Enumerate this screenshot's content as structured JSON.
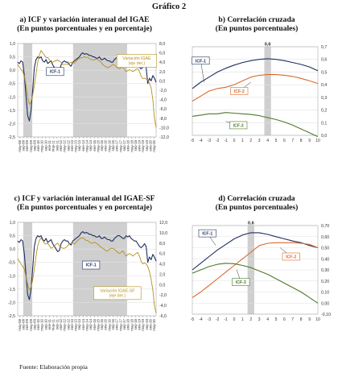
{
  "figure": {
    "title": "Gráfico 2",
    "source": "Fuente:      Elaboración propia"
  },
  "colors": {
    "icf": "#1f2f5e",
    "igae": "#b8901e",
    "ccf1": "#1f2f5e",
    "ccf2": "#d9692c",
    "ccf3": "#4a7a2b",
    "shade": "#cfcfcf",
    "grid": "#e2e2e2"
  },
  "chart_data": [
    {
      "id": "a",
      "type": "line",
      "title": "a) ICF y variación interanual del IGAE",
      "subtitle": "(En puntos porcentuales y en porcentaje)",
      "xticks": [
        "may-08",
        "sep-08",
        "ene-09",
        "may-09",
        "sep-09",
        "ene-10",
        "may-10",
        "sep-10",
        "ene-11",
        "may-11",
        "sep-11",
        "ene-12",
        "may-12",
        "sep-12",
        "ene-13",
        "may-13",
        "sep-13",
        "ene-14",
        "may-14",
        "sep-14",
        "ene-15",
        "may-15",
        "sep-15",
        "ene-16",
        "may-16",
        "sep-16",
        "ene-17",
        "may-17",
        "sep-17",
        "ene-18",
        "may-18",
        "sep-18",
        "ene-19",
        "may-19",
        "sep-19",
        "ene-20",
        "may-20"
      ],
      "ylim": [
        -2.5,
        1.0
      ],
      "y2lim": [
        -12.0,
        8.0
      ],
      "yticks": [
        "1,0",
        "0,5",
        "0,0",
        "-0,5",
        "-1,0",
        "-1,5",
        "-2,0",
        "-2,5"
      ],
      "y2ticks": [
        "8,0",
        "6,0",
        "4,0",
        "2,0",
        "0,0",
        "-2,0",
        "-4,0",
        "-6,0",
        "-8,0",
        "-10,0",
        "-12,0"
      ],
      "shaded_ranges": [
        [
          0.04,
          0.105
        ],
        [
          0.4,
          0.79
        ]
      ],
      "annotations": [
        {
          "text": "ICF-1",
          "x": 0.27,
          "y": -0.05,
          "boxed": true,
          "color": "#1f2f5e"
        },
        {
          "text": "Variación IGAE (eje der.)",
          "x": 0.86,
          "y": 0.35,
          "boxed": true,
          "color": "#b8901e"
        }
      ],
      "series": [
        {
          "key": "icf",
          "axis": "left",
          "values": [
            0.3,
            0.25,
            0.35,
            0.3,
            -0.2,
            -1.0,
            -1.7,
            -1.9,
            -1.5,
            -0.7,
            0.1,
            0.4,
            0.5,
            0.45,
            0.5,
            0.35,
            0.3,
            0.4,
            0.25,
            0.3,
            0.35,
            0.2,
            0.1,
            0.0,
            -0.1,
            -0.05,
            0.2,
            0.3,
            0.35,
            0.3,
            0.3,
            0.2,
            0.15,
            0.3,
            0.35,
            0.4,
            0.45,
            0.5,
            0.6,
            0.65,
            0.6,
            0.62,
            0.6,
            0.55,
            0.55,
            0.5,
            0.5,
            0.45,
            0.45,
            0.5,
            0.4,
            0.4,
            0.45,
            0.4,
            0.35,
            0.35,
            0.3,
            0.3,
            0.4,
            0.45,
            0.5,
            0.5,
            0.45,
            0.4,
            0.4,
            0.5,
            0.45,
            0.5,
            0.4,
            0.35,
            0.3,
            0.3,
            0.2,
            0.1,
            0.05,
            0.1,
            0.2,
            0.1,
            -0.5,
            -0.3,
            -0.4,
            -0.2,
            -0.3,
            -0.45
          ]
        },
        {
          "key": "igae",
          "axis": "right",
          "values": [
            3.5,
            3.0,
            2.5,
            2.0,
            1.0,
            -1.0,
            -3.5,
            -5.0,
            -4.5,
            -3.0,
            -1.0,
            1.5,
            4.0,
            5.5,
            6.5,
            6.0,
            5.5,
            5.0,
            5.0,
            4.5,
            4.0,
            4.0,
            4.2,
            4.3,
            4.5,
            4.2,
            4.0,
            3.5,
            3.5,
            3.6,
            3.5,
            3.8,
            4.0,
            4.0,
            3.8,
            4.2,
            4.6,
            4.8,
            5.0,
            5.0,
            5.2,
            5.0,
            5.1,
            4.8,
            4.6,
            4.5,
            4.5,
            4.7,
            4.5,
            4.3,
            4.0,
            3.5,
            3.2,
            3.0,
            2.8,
            3.0,
            3.2,
            3.5,
            3.4,
            3.0,
            2.8,
            2.6,
            2.8,
            3.0,
            2.5,
            2.0,
            2.2,
            2.4,
            2.2,
            2.0,
            2.2,
            2.5,
            2.6,
            2.0,
            1.0,
            0.5,
            0.6,
            0.4,
            0.2,
            -0.5,
            -1.5,
            -4.0,
            -8.0,
            -10.0
          ]
        }
      ]
    },
    {
      "id": "b",
      "type": "line",
      "title": "b) Correlación cruzada",
      "subtitle": "(En puntos porcentuales)",
      "x": [
        -5,
        -4,
        -3,
        -2,
        -1,
        0,
        1,
        2,
        3,
        4,
        5,
        6,
        7,
        8,
        9,
        10
      ],
      "xlim": [
        -5,
        10
      ],
      "y2lim": [
        0.0,
        0.7
      ],
      "y2ticks": [
        "0,7",
        "0,6",
        "0,5",
        "0,4",
        "0,3",
        "0,2",
        "0,1",
        "0,0"
      ],
      "shaded_ranges": [
        [
          3.6,
          4.4
        ]
      ],
      "peak_label": {
        "text": "0,6",
        "x": 4
      },
      "annotations": [
        {
          "text": "ICF-1",
          "x": -4.0,
          "y": 0.59,
          "boxed": true,
          "color": "#1f2f5e",
          "arrow_to": [
            -3.6,
            0.42
          ]
        },
        {
          "text": "ICF-2",
          "x": 0.6,
          "y": 0.35,
          "boxed": true,
          "color": "#d9692c",
          "arrow_to": [
            2.0,
            0.42
          ]
        },
        {
          "text": "ICF-3",
          "x": 0.5,
          "y": 0.08,
          "boxed": true,
          "color": "#4a7a2b",
          "arrow_to": [
            -1.0,
            0.11
          ]
        }
      ],
      "series": [
        {
          "key": "ccf1",
          "values": [
            0.37,
            0.42,
            0.46,
            0.5,
            0.53,
            0.555,
            0.575,
            0.59,
            0.6,
            0.605,
            0.6,
            0.59,
            0.575,
            0.56,
            0.54,
            0.51
          ]
        },
        {
          "key": "ccf2",
          "values": [
            0.27,
            0.31,
            0.35,
            0.37,
            0.38,
            0.4,
            0.43,
            0.46,
            0.475,
            0.48,
            0.48,
            0.475,
            0.465,
            0.45,
            0.43,
            0.41
          ]
        },
        {
          "key": "ccf3",
          "values": [
            0.15,
            0.16,
            0.17,
            0.17,
            0.18,
            0.175,
            0.17,
            0.165,
            0.155,
            0.14,
            0.125,
            0.105,
            0.08,
            0.05,
            0.02,
            -0.01
          ]
        }
      ]
    },
    {
      "id": "c",
      "type": "line",
      "title": "c) ICF y variación interanual del IGAE-SF",
      "subtitle": "(En puntos porcentuales y en porcentaje)",
      "xticks": [
        "may-08",
        "sep-08",
        "ene-09",
        "may-09",
        "sep-09",
        "ene-10",
        "may-10",
        "sep-10",
        "ene-11",
        "may-11",
        "sep-11",
        "ene-12",
        "may-12",
        "sep-12",
        "ene-13",
        "may-13",
        "sep-13",
        "ene-14",
        "may-14",
        "sep-14",
        "ene-15",
        "may-15",
        "sep-15",
        "ene-16",
        "may-16",
        "sep-16",
        "ene-17",
        "may-17",
        "sep-17",
        "ene-18",
        "may-18",
        "sep-18",
        "ene-19",
        "may-19",
        "sep-19",
        "ene-20",
        "may-20"
      ],
      "ylim": [
        -2.5,
        1.0
      ],
      "y2lim": [
        -6.0,
        12.0
      ],
      "yticks": [
        "1,0",
        "0,5",
        "0,0",
        "-0,5",
        "-1,0",
        "-1,5",
        "-2,0",
        "-2,5"
      ],
      "y2ticks": [
        "12,0",
        "10,0",
        "8,0",
        "6,0",
        "4,0",
        "2,0",
        "0,0",
        "-2,0",
        "-4,0",
        "-6,0"
      ],
      "shaded_ranges": [
        [
          0.04,
          0.105
        ],
        [
          0.4,
          0.79
        ]
      ],
      "annotations": [
        {
          "text": "ICF-1",
          "x": 0.53,
          "y": -0.6,
          "boxed": true,
          "color": "#1f2f5e"
        },
        {
          "text": "Variación IGAE-SF (eje der.)",
          "x": 0.72,
          "y": -1.65,
          "boxed": true,
          "color": "#b8901e"
        }
      ],
      "series": [
        {
          "key": "icf",
          "axis": "left",
          "values": [
            0.3,
            0.25,
            0.35,
            0.3,
            -0.2,
            -1.0,
            -1.7,
            -1.9,
            -1.5,
            -0.7,
            0.1,
            0.4,
            0.5,
            0.45,
            0.5,
            0.35,
            0.3,
            0.4,
            0.25,
            0.3,
            0.35,
            0.2,
            0.1,
            0.0,
            -0.1,
            -0.05,
            0.2,
            0.3,
            0.35,
            0.3,
            0.3,
            0.2,
            0.15,
            0.3,
            0.35,
            0.4,
            0.45,
            0.5,
            0.6,
            0.65,
            0.6,
            0.62,
            0.6,
            0.55,
            0.55,
            0.5,
            0.5,
            0.45,
            0.45,
            0.5,
            0.4,
            0.4,
            0.45,
            0.4,
            0.35,
            0.35,
            0.3,
            0.3,
            0.4,
            0.45,
            0.5,
            0.5,
            0.45,
            0.4,
            0.4,
            0.5,
            0.45,
            0.5,
            0.4,
            0.35,
            0.3,
            0.3,
            0.2,
            0.1,
            0.05,
            0.1,
            0.2,
            0.1,
            -0.5,
            -0.3,
            -0.4,
            -0.2,
            -0.3,
            -0.45
          ]
        },
        {
          "key": "igae",
          "axis": "right",
          "values": [
            5.0,
            4.5,
            4.0,
            3.5,
            3.0,
            1.5,
            0.0,
            -1.0,
            -0.5,
            1.0,
            3.0,
            5.5,
            7.5,
            8.5,
            9.0,
            8.5,
            8.0,
            7.8,
            8.0,
            7.5,
            7.0,
            7.2,
            7.5,
            7.8,
            8.0,
            7.5,
            7.2,
            7.0,
            7.0,
            7.2,
            7.5,
            7.8,
            8.0,
            8.0,
            7.8,
            8.2,
            8.5,
            8.8,
            9.0,
            9.0,
            8.8,
            8.5,
            8.5,
            8.2,
            8.0,
            8.0,
            8.2,
            8.0,
            7.8,
            7.5,
            7.2,
            7.0,
            6.8,
            6.5,
            6.5,
            6.8,
            7.0,
            7.0,
            6.8,
            6.5,
            6.2,
            6.0,
            6.2,
            6.5,
            6.0,
            5.5,
            5.8,
            6.0,
            5.8,
            5.5,
            5.8,
            6.0,
            6.2,
            5.5,
            4.5,
            4.0,
            4.2,
            4.0,
            3.5,
            2.5,
            1.0,
            -1.0,
            -4.0,
            -5.5
          ]
        }
      ]
    },
    {
      "id": "d",
      "type": "line",
      "title": "d) Correlación cruzada",
      "subtitle": "(En puntos porcentuales)",
      "x": [
        -5,
        -4,
        -3,
        -2,
        -1,
        0,
        1,
        2,
        3,
        4,
        5,
        6,
        7,
        8,
        9,
        10
      ],
      "xlim": [
        -5,
        10
      ],
      "y2lim": [
        -0.1,
        0.7
      ],
      "y2ticks": [
        "0,70",
        "0,60",
        "0,50",
        "0,40",
        "0,30",
        "0,20",
        "0,10",
        "0,00",
        "-0,10"
      ],
      "shaded_ranges": [
        [
          1.6,
          2.4
        ]
      ],
      "peak_label": {
        "text": "0,6",
        "x": 2
      },
      "annotations": [
        {
          "text": "ICF-1",
          "x": -3.2,
          "y": 0.63,
          "boxed": true,
          "color": "#1f2f5e",
          "arrow_to": [
            -2.2,
            0.52
          ]
        },
        {
          "text": "ICF-2",
          "x": 6.8,
          "y": 0.42,
          "boxed": true,
          "color": "#d9692c",
          "arrow_to": [
            5.5,
            0.5
          ]
        },
        {
          "text": "ICF-3",
          "x": 0.8,
          "y": 0.19,
          "boxed": true,
          "color": "#4a7a2b",
          "arrow_to": [
            0.3,
            0.3
          ]
        }
      ],
      "series": [
        {
          "key": "ccf1",
          "values": [
            0.3,
            0.36,
            0.42,
            0.48,
            0.53,
            0.58,
            0.615,
            0.635,
            0.635,
            0.62,
            0.6,
            0.58,
            0.56,
            0.545,
            0.52,
            0.5
          ]
        },
        {
          "key": "ccf2",
          "values": [
            0.05,
            0.1,
            0.16,
            0.22,
            0.28,
            0.34,
            0.4,
            0.46,
            0.52,
            0.54,
            0.545,
            0.545,
            0.545,
            0.54,
            0.53,
            0.5
          ]
        },
        {
          "key": "ccf3",
          "values": [
            0.27,
            0.3,
            0.33,
            0.35,
            0.36,
            0.355,
            0.34,
            0.32,
            0.29,
            0.26,
            0.22,
            0.18,
            0.14,
            0.1,
            0.05,
            0.0
          ]
        }
      ]
    }
  ]
}
